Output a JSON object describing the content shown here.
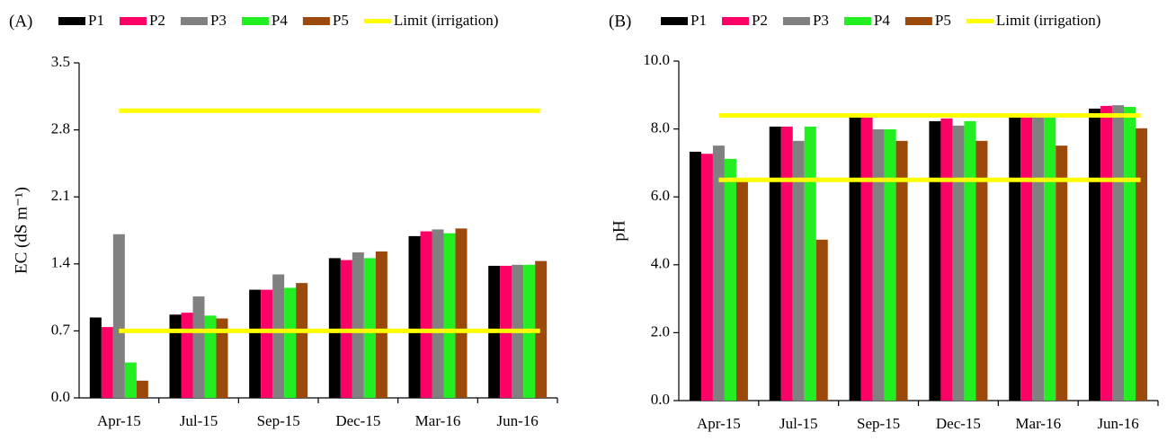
{
  "chart_data": [
    {
      "type": "bar",
      "panel": "(A)",
      "ylabel": "EC (dS m⁻¹)",
      "categories": [
        "Apr-15",
        "Jul-15",
        "Sep-15",
        "Dec-15",
        "Mar-16",
        "Jun-16"
      ],
      "series": [
        {
          "name": "P1",
          "color": "#000000",
          "values": [
            0.84,
            0.87,
            1.13,
            1.46,
            1.69,
            1.38
          ]
        },
        {
          "name": "P2",
          "color": "#ff0066",
          "values": [
            0.74,
            0.89,
            1.13,
            1.44,
            1.74,
            1.38
          ]
        },
        {
          "name": "P3",
          "color": "#808080",
          "values": [
            1.71,
            1.06,
            1.29,
            1.52,
            1.76,
            1.39
          ]
        },
        {
          "name": "P4",
          "color": "#22ee22",
          "values": [
            0.37,
            0.86,
            1.15,
            1.46,
            1.72,
            1.39
          ]
        },
        {
          "name": "P5",
          "color": "#9c4a0c",
          "values": [
            0.18,
            0.83,
            1.2,
            1.53,
            1.77,
            1.43
          ]
        }
      ],
      "limit_lines": {
        "name": "Limit (irrigation)",
        "color": "#ffff00",
        "values": [
          3.0,
          0.7
        ]
      },
      "ylim": [
        0,
        3.5
      ],
      "yticks": [
        {
          "value": 0,
          "label": "0.0"
        },
        0.7,
        1.4,
        2.1,
        2.8,
        3.5
      ]
    },
    {
      "type": "bar",
      "panel": "(B)",
      "ylabel": "pH",
      "categories": [
        "Apr-15",
        "Jul-15",
        "Sep-15",
        "Dec-15",
        "Mar-16",
        "Jun-16"
      ],
      "series": [
        {
          "name": "P1",
          "color": "#000000",
          "values": [
            7.33,
            8.07,
            8.4,
            8.23,
            8.4,
            8.6
          ]
        },
        {
          "name": "P2",
          "color": "#ff0066",
          "values": [
            7.27,
            8.07,
            8.4,
            8.31,
            8.4,
            8.68
          ]
        },
        {
          "name": "P3",
          "color": "#808080",
          "values": [
            7.51,
            7.65,
            7.99,
            8.1,
            8.4,
            8.7
          ]
        },
        {
          "name": "P4",
          "color": "#22ee22",
          "values": [
            7.12,
            8.07,
            7.99,
            8.23,
            8.4,
            8.65
          ]
        },
        {
          "name": "P5",
          "color": "#9c4a0c",
          "values": [
            6.5,
            4.74,
            7.65,
            7.65,
            7.51,
            8.02
          ]
        }
      ],
      "limit_lines": {
        "name": "Limit (irrigation)",
        "color": "#ffff00",
        "values": [
          8.4,
          6.5
        ]
      },
      "ylim": [
        0,
        10
      ],
      "yticks": [
        {
          "value": 0,
          "label": "0.0"
        },
        {
          "value": 2,
          "label": "2.0"
        },
        {
          "value": 4,
          "label": "4.0"
        },
        {
          "value": 6,
          "label": "6.0"
        },
        {
          "value": 8,
          "label": "8.0"
        },
        {
          "value": 10,
          "label": "10.0"
        }
      ]
    }
  ]
}
